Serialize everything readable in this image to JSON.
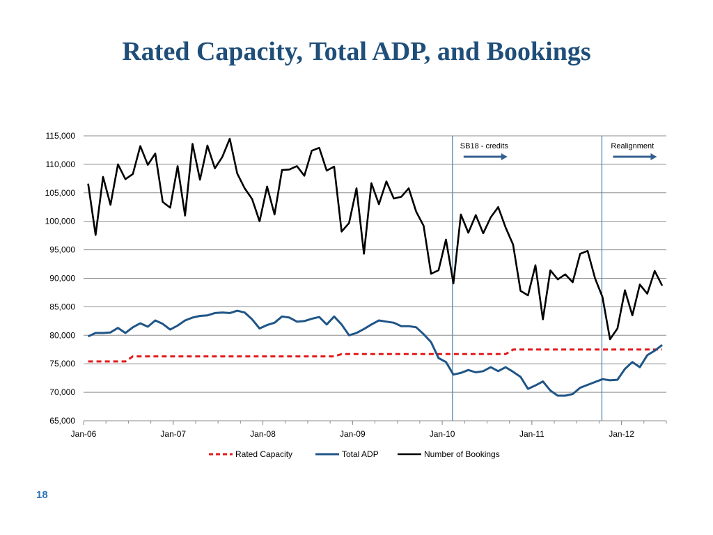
{
  "slide": {
    "title": "Rated Capacity, Total ADP, and Bookings",
    "page_number": "18"
  },
  "colors": {
    "title": "#1f4e79",
    "rated_capacity": "#e31a1c",
    "total_adp": "#1f5587",
    "bookings": "#000000",
    "grid": "#8c8c8c",
    "marker_line": "#5b86b0",
    "arrow": "#34608f",
    "page_number": "#2e74b5"
  },
  "chart_data": {
    "type": "line",
    "title": "",
    "xlabel": "",
    "ylabel": "",
    "x_start": "Jan-06",
    "x_step": "month",
    "x_tick_labels": [
      "Jan-06",
      "Jan-07",
      "Jan-08",
      "Jan-09",
      "Jan-10",
      "Jan-11",
      "Jan-12"
    ],
    "x_tick_months": [
      0,
      12,
      24,
      36,
      48,
      60,
      72
    ],
    "y_ticks": [
      "65,000",
      "70,000",
      "75,000",
      "80,000",
      "85,000",
      "90,000",
      "95,000",
      "100,000",
      "105,000",
      "110,000",
      "115,000"
    ],
    "ylim": [
      65000,
      115000
    ],
    "grid": "horizontal",
    "legend_position": "bottom",
    "series": [
      {
        "name": "Rated Capacity",
        "style": "dashed",
        "values": [
          75400,
          75400,
          75400,
          75400,
          75400,
          75400,
          76300,
          76300,
          76300,
          76300,
          76300,
          76300,
          76300,
          76300,
          76300,
          76300,
          76300,
          76300,
          76300,
          76300,
          76300,
          76300,
          76300,
          76300,
          76300,
          76300,
          76300,
          76300,
          76300,
          76300,
          76300,
          76300,
          76300,
          76300,
          76700,
          76700,
          76700,
          76700,
          76700,
          76700,
          76700,
          76700,
          76700,
          76700,
          76700,
          76700,
          76700,
          76700,
          76700,
          76700,
          76700,
          76700,
          76700,
          76700,
          76700,
          76700,
          76700,
          77500,
          77500,
          77500,
          77500,
          77500,
          77500,
          77500,
          77500,
          77500,
          77500,
          77500,
          77500,
          77500,
          77500,
          77500,
          77500,
          77500,
          77500,
          77500,
          77500,
          77500
        ]
      },
      {
        "name": "Total ADP",
        "style": "solid",
        "values": [
          79800,
          80400,
          80400,
          80500,
          81300,
          80400,
          81400,
          82100,
          81500,
          82600,
          82000,
          81000,
          81700,
          82600,
          83100,
          83400,
          83500,
          83900,
          84000,
          83900,
          84300,
          84000,
          82800,
          81200,
          81800,
          82200,
          83300,
          83100,
          82400,
          82500,
          82900,
          83200,
          81900,
          83300,
          81900,
          80000,
          80400,
          81100,
          81900,
          82600,
          82400,
          82200,
          81600,
          81600,
          81400,
          80200,
          78800,
          76000,
          75300,
          73100,
          73400,
          73900,
          73500,
          73700,
          74400,
          73700,
          74400,
          73600,
          72700,
          70600,
          71200,
          71900,
          70300,
          69400,
          69400,
          69700,
          70800,
          71300,
          71800,
          72300,
          72100,
          72200,
          74100,
          75300,
          74400,
          76500,
          77300,
          78300
        ]
      },
      {
        "name": "Number of Bookings",
        "style": "solid",
        "values": [
          106600,
          97600,
          107800,
          102900,
          110000,
          107400,
          108300,
          113200,
          109900,
          111900,
          103400,
          102400,
          109700,
          101000,
          113600,
          107300,
          113300,
          109300,
          111300,
          114500,
          108400,
          105800,
          103900,
          100000,
          106100,
          101200,
          109000,
          109100,
          109700,
          108000,
          112400,
          112900,
          108900,
          109600,
          98200,
          99700,
          105800,
          94300,
          106700,
          103000,
          107000,
          104000,
          104300,
          105800,
          101700,
          99200,
          90800,
          91400,
          96800,
          89100,
          101200,
          98000,
          101100,
          97900,
          100700,
          102500,
          98900,
          95900,
          87800,
          87000,
          92300,
          82800,
          91400,
          89800,
          90700,
          89300,
          94300,
          94800,
          90000,
          86700,
          79300,
          81200,
          87900,
          83500,
          88900,
          87300,
          91300,
          88700
        ]
      }
    ],
    "annotations": [
      {
        "text": "SB18 - credits",
        "at_month": 49
      },
      {
        "text": "Realignment",
        "at_month": 69
      }
    ]
  }
}
